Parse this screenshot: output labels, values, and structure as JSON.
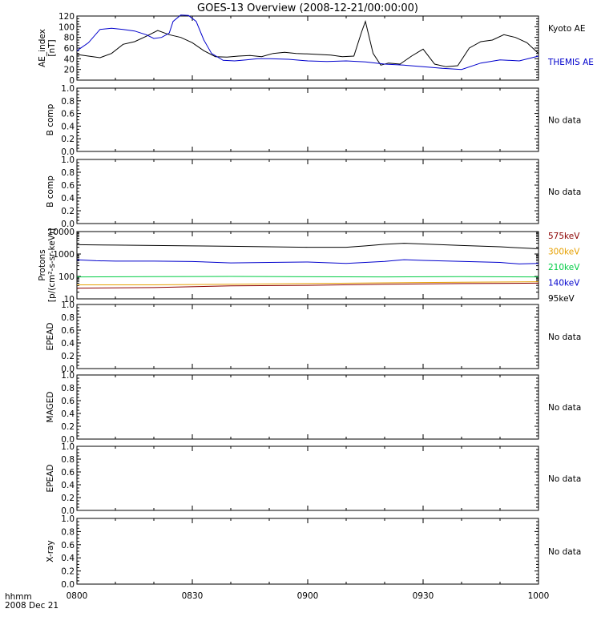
{
  "title": "GOES-13 Overview (2008-12-21/00:00:00)",
  "x_axis": {
    "ticks": [
      "0800",
      "0830",
      "0900",
      "0930",
      "1000"
    ],
    "tick_minutes": [
      0,
      30,
      60,
      90,
      120
    ],
    "range_minutes": [
      0,
      120
    ],
    "label_line1": "hhmm",
    "label_line2": "2008 Dec 21"
  },
  "colors": {
    "axis": "#000000",
    "kyoto": "#000000",
    "themis": "#0000cc",
    "e575": "#8b0000",
    "e300": "#e6a000",
    "e210": "#00cc44",
    "e140": "#0000cc",
    "e95": "#000000"
  },
  "chart_data": [
    {
      "type": "line",
      "ylabel_lines": [
        "AE_index",
        "[nT]"
      ],
      "ylim": [
        0,
        120
      ],
      "yticks": [
        0,
        20,
        40,
        60,
        80,
        100,
        120
      ],
      "ytick_labels": [
        "0",
        "20",
        "40",
        "60",
        "80",
        "100",
        "120"
      ],
      "series": [
        {
          "name": "Kyoto AE",
          "color_key": "kyoto",
          "x": [
            0,
            3,
            6,
            9,
            12,
            15,
            18,
            21,
            24,
            27,
            30,
            33,
            36,
            39,
            42,
            45,
            48,
            51,
            54,
            57,
            60,
            63,
            66,
            69,
            72,
            74,
            75,
            77,
            79,
            81,
            84,
            87,
            90,
            93,
            96,
            99,
            102,
            105,
            108,
            111,
            114,
            117,
            120
          ],
          "y": [
            48,
            45,
            42,
            50,
            67,
            72,
            82,
            93,
            85,
            80,
            70,
            55,
            44,
            43,
            45,
            46,
            44,
            50,
            52,
            50,
            49,
            48,
            47,
            44,
            45,
            90,
            110,
            50,
            28,
            32,
            30,
            45,
            58,
            30,
            25,
            27,
            60,
            72,
            75,
            85,
            80,
            70,
            50
          ]
        },
        {
          "name": "THEMIS AE",
          "color_key": "themis",
          "x": [
            0,
            3,
            6,
            9,
            12,
            15,
            18,
            20,
            22,
            24,
            25,
            27,
            29,
            31,
            33,
            35,
            38,
            41,
            44,
            47,
            50,
            55,
            60,
            65,
            70,
            75,
            80,
            85,
            90,
            95,
            100,
            105,
            110,
            115,
            120
          ],
          "y": [
            55,
            70,
            95,
            97,
            95,
            92,
            85,
            78,
            80,
            88,
            110,
            122,
            121,
            110,
            75,
            50,
            37,
            36,
            38,
            40,
            40,
            39,
            36,
            35,
            36,
            34,
            30,
            28,
            25,
            22,
            20,
            32,
            38,
            36,
            45
          ]
        }
      ]
    },
    {
      "type": "line",
      "ylabel_lines": [
        "B comp"
      ],
      "ylim": [
        0,
        1
      ],
      "yticks": [
        0,
        0.2,
        0.4,
        0.6,
        0.8,
        1.0
      ],
      "ytick_labels": [
        "0.0",
        "0.2",
        "0.4",
        "0.6",
        "0.8",
        "1.0"
      ],
      "status": "No data",
      "series": []
    },
    {
      "type": "line",
      "ylabel_lines": [
        "B comp"
      ],
      "ylim": [
        0,
        1
      ],
      "yticks": [
        0,
        0.2,
        0.4,
        0.6,
        0.8,
        1.0
      ],
      "ytick_labels": [
        "0.0",
        "0.2",
        "0.4",
        "0.6",
        "0.8",
        "1.0"
      ],
      "status": "No data",
      "series": []
    },
    {
      "type": "line",
      "log_y": true,
      "ylabel_lines": [
        "Protons",
        "[p/(cm²-s-sr-keV)]"
      ],
      "ylim": [
        10,
        10000
      ],
      "yticks": [
        10,
        100,
        1000,
        10000
      ],
      "ytick_labels": [
        "10",
        "100",
        "1000",
        "10000"
      ],
      "series": [
        {
          "name": "575keV",
          "color_key": "e575",
          "x": [
            0,
            20,
            40,
            60,
            80,
            100,
            120
          ],
          "y": [
            30,
            32,
            38,
            40,
            45,
            48,
            50
          ]
        },
        {
          "name": "300keV",
          "color_key": "e300",
          "x": [
            0,
            20,
            40,
            60,
            80,
            100,
            120
          ],
          "y": [
            42,
            42,
            45,
            48,
            52,
            55,
            58
          ]
        },
        {
          "name": "210keV",
          "color_key": "e210",
          "x": [
            0,
            20,
            40,
            60,
            80,
            100,
            120
          ],
          "y": [
            95,
            98,
            100,
            97,
            95,
            98,
            95
          ]
        },
        {
          "name": "140keV",
          "color_key": "e140",
          "x": [
            0,
            5,
            10,
            20,
            30,
            40,
            50,
            60,
            70,
            80,
            85,
            90,
            100,
            110,
            115,
            120
          ],
          "y": [
            550,
            500,
            480,
            480,
            460,
            400,
            420,
            440,
            380,
            470,
            560,
            520,
            470,
            420,
            360,
            380
          ]
        },
        {
          "name": "95keV",
          "color_key": "e95",
          "x": [
            0,
            10,
            20,
            30,
            40,
            50,
            60,
            70,
            75,
            80,
            85,
            90,
            100,
            110,
            120
          ],
          "y": [
            2600,
            2500,
            2400,
            2300,
            2200,
            2100,
            2000,
            2000,
            2300,
            2700,
            3000,
            2800,
            2400,
            2100,
            1700
          ]
        }
      ]
    },
    {
      "type": "line",
      "ylabel_lines": [
        "EPEAD"
      ],
      "ylim": [
        0,
        1
      ],
      "yticks": [
        0,
        0.2,
        0.4,
        0.6,
        0.8,
        1.0
      ],
      "ytick_labels": [
        "0.0",
        "0.2",
        "0.4",
        "0.6",
        "0.8",
        "1.0"
      ],
      "status": "No data",
      "series": []
    },
    {
      "type": "line",
      "ylabel_lines": [
        "MAGED"
      ],
      "ylim": [
        0,
        1
      ],
      "yticks": [
        0,
        0.2,
        0.4,
        0.6,
        0.8,
        1.0
      ],
      "ytick_labels": [
        "0.0",
        "0.2",
        "0.4",
        "0.6",
        "0.8",
        "1.0"
      ],
      "status": "No data",
      "series": []
    },
    {
      "type": "line",
      "ylabel_lines": [
        "EPEAD"
      ],
      "ylim": [
        0,
        1
      ],
      "yticks": [
        0,
        0.2,
        0.4,
        0.6,
        0.8,
        1.0
      ],
      "ytick_labels": [
        "0.0",
        "0.2",
        "0.4",
        "0.6",
        "0.8",
        "1.0"
      ],
      "status": "No data",
      "series": []
    },
    {
      "type": "line",
      "ylabel_lines": [
        "X-ray"
      ],
      "ylim": [
        0,
        1
      ],
      "yticks": [
        0,
        0.2,
        0.4,
        0.6,
        0.8,
        1.0
      ],
      "ytick_labels": [
        "0.0",
        "0.2",
        "0.4",
        "0.6",
        "0.8",
        "1.0"
      ],
      "status": "No data",
      "series": []
    }
  ]
}
